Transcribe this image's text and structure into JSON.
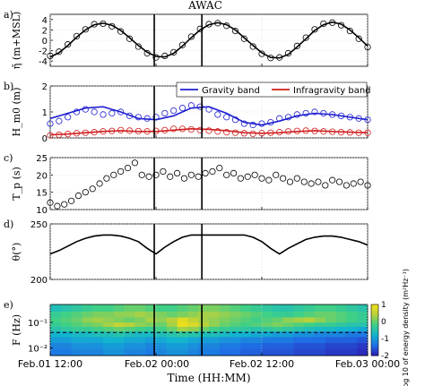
{
  "figure": {
    "title": "AWAC",
    "xlabel": "Time (HH:MM)",
    "xticks": [
      "Feb.01 12:00",
      "Feb.02 00:00",
      "Feb.02 12:00",
      "Feb.03 00:00"
    ]
  },
  "chart_data": [
    {
      "panel": "a)",
      "type": "line",
      "ylabel": "η̄ (m+MSL)",
      "ylim": [
        -5,
        5
      ],
      "yticks": [
        "4",
        "2",
        "0",
        "-2",
        "-4"
      ],
      "x_unit": "hours since Feb.01 12:00",
      "xlim": [
        0,
        36
      ],
      "vlines": [
        11.8,
        17.2
      ],
      "series": [
        {
          "kind": "line",
          "color": "#000000",
          "x": [
            0,
            1,
            2,
            3,
            4,
            5,
            6,
            7,
            8,
            9,
            10,
            11,
            12,
            13,
            14,
            15,
            16,
            17,
            18,
            19,
            20,
            21,
            22,
            23,
            24,
            25,
            26,
            27,
            28,
            29,
            30,
            31,
            32,
            33,
            34,
            35,
            36
          ],
          "y": [
            -3.2,
            -2.4,
            -1.0,
            0.6,
            2.0,
            3.0,
            3.3,
            2.9,
            1.9,
            0.5,
            -1.0,
            -2.3,
            -3.1,
            -3.2,
            -2.5,
            -1.1,
            0.5,
            2.0,
            3.0,
            3.4,
            3.0,
            2.0,
            0.5,
            -1.0,
            -2.4,
            -3.3,
            -3.4,
            -2.7,
            -1.3,
            0.3,
            1.9,
            3.0,
            3.5,
            3.1,
            2.0,
            0.5,
            -1.1
          ]
        },
        {
          "kind": "markers",
          "marker": "open-circle",
          "color": "#000000",
          "x": [
            0,
            1,
            2,
            3,
            4,
            5,
            6,
            7,
            8,
            9,
            10,
            11,
            12,
            13,
            14,
            15,
            16,
            17,
            18,
            19,
            20,
            21,
            22,
            23,
            24,
            25,
            26,
            27,
            28,
            29,
            30,
            31,
            32,
            33,
            34,
            35,
            36
          ],
          "y": [
            -3.0,
            -2.2,
            -0.8,
            0.8,
            2.1,
            3.1,
            3.2,
            2.7,
            1.7,
            0.3,
            -1.2,
            -2.5,
            -3.3,
            -3.0,
            -2.3,
            -0.9,
            0.7,
            2.2,
            3.1,
            3.3,
            2.8,
            1.8,
            0.3,
            -1.2,
            -2.6,
            -3.4,
            -3.3,
            -2.5,
            -1.1,
            0.5,
            2.1,
            3.2,
            3.4,
            2.9,
            1.8,
            0.3,
            -1.3
          ]
        }
      ]
    },
    {
      "panel": "b)",
      "type": "line",
      "ylabel": "H_m0 (m)",
      "ylim": [
        0,
        2
      ],
      "yticks": [
        "2",
        "1",
        "0"
      ],
      "x_unit": "hours since Feb.01 12:00",
      "xlim": [
        0,
        36
      ],
      "vlines": [
        11.8,
        17.2
      ],
      "legend": {
        "placement": "top-right",
        "entries": [
          "Gravity band",
          "Infragravity band"
        ]
      },
      "series": [
        {
          "name": "Gravity band",
          "kind": "line",
          "color": "#1f1fd0",
          "x": [
            0,
            2,
            4,
            6,
            8,
            10,
            12,
            14,
            16,
            18,
            20,
            22,
            24,
            26,
            28,
            30,
            32,
            34,
            36
          ],
          "y": [
            0.75,
            0.95,
            1.15,
            1.2,
            1.0,
            0.75,
            0.7,
            0.85,
            1.15,
            1.2,
            0.95,
            0.6,
            0.5,
            0.65,
            0.85,
            0.95,
            0.9,
            0.8,
            0.7
          ]
        },
        {
          "name": "Infragravity band",
          "kind": "line",
          "color": "#d01f1f",
          "x": [
            0,
            2,
            4,
            6,
            8,
            10,
            12,
            14,
            16,
            18,
            20,
            22,
            24,
            26,
            28,
            30,
            32,
            34,
            36
          ],
          "y": [
            0.12,
            0.15,
            0.2,
            0.25,
            0.28,
            0.25,
            0.25,
            0.3,
            0.35,
            0.33,
            0.28,
            0.2,
            0.18,
            0.2,
            0.25,
            0.28,
            0.25,
            0.22,
            0.2
          ]
        },
        {
          "kind": "markers",
          "marker": "open-circle",
          "color": "#1f1fd0",
          "x": [
            0,
            1,
            2,
            3,
            4,
            5,
            6,
            7,
            8,
            9,
            10,
            11,
            12,
            13,
            14,
            15,
            16,
            17,
            18,
            19,
            20,
            21,
            22,
            23,
            24,
            25,
            26,
            27,
            28,
            29,
            30,
            31,
            32,
            33,
            34,
            35,
            36
          ],
          "y": [
            0.55,
            0.65,
            0.8,
            1.0,
            1.1,
            1.0,
            0.9,
            0.95,
            1.0,
            0.85,
            0.8,
            0.75,
            0.8,
            0.95,
            1.05,
            1.15,
            1.25,
            1.2,
            1.1,
            0.9,
            0.8,
            0.7,
            0.55,
            0.5,
            0.55,
            0.6,
            0.75,
            0.8,
            0.9,
            0.95,
            1.0,
            0.95,
            0.9,
            0.85,
            0.8,
            0.75,
            0.7
          ]
        },
        {
          "kind": "markers",
          "marker": "open-circle",
          "color": "#d01f1f",
          "x": [
            0,
            1,
            2,
            3,
            4,
            5,
            6,
            7,
            8,
            9,
            10,
            11,
            12,
            13,
            14,
            15,
            16,
            17,
            18,
            19,
            20,
            21,
            22,
            23,
            24,
            25,
            26,
            27,
            28,
            29,
            30,
            31,
            32,
            33,
            34,
            35,
            36
          ],
          "y": [
            0.1,
            0.12,
            0.15,
            0.18,
            0.2,
            0.22,
            0.25,
            0.27,
            0.3,
            0.28,
            0.26,
            0.25,
            0.27,
            0.3,
            0.35,
            0.35,
            0.33,
            0.3,
            0.28,
            0.25,
            0.22,
            0.2,
            0.18,
            0.16,
            0.18,
            0.2,
            0.22,
            0.25,
            0.27,
            0.28,
            0.27,
            0.25,
            0.24,
            0.22,
            0.21,
            0.2,
            0.2
          ]
        }
      ]
    },
    {
      "panel": "c)",
      "type": "scatter",
      "ylabel": "T_p (s)",
      "ylim": [
        10,
        25
      ],
      "yticks": [
        "25",
        "20",
        "15",
        "10"
      ],
      "x_unit": "hours since Feb.01 12:00",
      "xlim": [
        0,
        36
      ],
      "vlines": [
        11.8,
        17.2
      ],
      "series": [
        {
          "kind": "markers",
          "marker": "open-circle",
          "color": "#000000",
          "x": [
            0,
            0.8,
            1.6,
            2.4,
            3.2,
            4.0,
            4.8,
            5.6,
            6.4,
            7.2,
            8.0,
            8.8,
            9.6,
            10.4,
            11.2,
            12.0,
            12.8,
            13.6,
            14.4,
            15.2,
            16.0,
            16.8,
            17.6,
            18.4,
            19.2,
            20.0,
            20.8,
            21.6,
            22.4,
            23.2,
            24.0,
            24.8,
            25.6,
            26.4,
            27.2,
            28.0,
            28.8,
            29.6,
            30.4,
            31.2,
            32.0,
            32.8,
            33.6,
            34.4,
            35.2,
            36.0
          ],
          "y": [
            12,
            11,
            11.5,
            12.5,
            14,
            15,
            16,
            17.5,
            19,
            20,
            21,
            22,
            23.5,
            20,
            19.5,
            20,
            21,
            19.5,
            20.5,
            19,
            20,
            19.5,
            20.5,
            21,
            22,
            20,
            20.5,
            19,
            19.5,
            20,
            19,
            18.5,
            20,
            19,
            18,
            19,
            18,
            17.5,
            18,
            17,
            18.5,
            18,
            17,
            17.5,
            18,
            17
          ]
        }
      ]
    },
    {
      "panel": "d)",
      "type": "line",
      "ylabel": "θ(°)",
      "ylim": [
        200,
        250
      ],
      "yticks": [
        "250",
        "200"
      ],
      "x_unit": "hours since Feb.01 12:00",
      "xlim": [
        0,
        36
      ],
      "vlines": [
        11.8,
        17.2
      ],
      "series": [
        {
          "kind": "line",
          "color": "#000000",
          "x": [
            0,
            1,
            2,
            3,
            4,
            5,
            6,
            7,
            8,
            9,
            10,
            11,
            12,
            13,
            14,
            15,
            16,
            17,
            18,
            19,
            20,
            21,
            22,
            23,
            24,
            25,
            26,
            27,
            28,
            29,
            30,
            31,
            32,
            33,
            34,
            35,
            36
          ],
          "y": [
            223,
            226,
            230,
            234,
            237,
            239,
            240,
            240,
            239,
            237,
            234,
            228,
            223,
            229,
            234,
            238,
            240,
            240,
            240,
            240,
            240,
            240,
            240,
            238,
            234,
            228,
            223,
            228,
            232,
            236,
            238,
            239,
            239,
            238,
            236,
            234,
            231
          ]
        }
      ]
    },
    {
      "panel": "e)",
      "type": "heatmap",
      "ylabel": "F (Hz)",
      "yticks": [
        "10⁻¹",
        "10⁻²"
      ],
      "y_scale": "log",
      "ylim": [
        0.005,
        0.5
      ],
      "x_unit": "hours since Feb.01 12:00",
      "xlim": [
        0,
        36
      ],
      "vlines": [
        11.8,
        17.2
      ],
      "colorbar": {
        "label": "Log 10 of energy density (m²Hz⁻¹)",
        "ticks": [
          "1",
          "0",
          "-1",
          "-2"
        ],
        "range": [
          -2,
          1
        ],
        "colors": [
          "#2c1fb4",
          "#1f6ee6",
          "#12b4cf",
          "#3fcf87",
          "#b8d13a",
          "#f5e016"
        ]
      },
      "horizontal_line_hz": 0.04,
      "rows": [
        {
          "freq_hz": 0.35,
          "values": [
            -0.6,
            -0.5,
            -0.4,
            -0.3,
            -0.2,
            -0.2,
            -0.1,
            0.0,
            0.0,
            -0.1,
            -0.2,
            -0.2,
            -0.1,
            0.0,
            0.1,
            0.1,
            0.0,
            -0.1,
            -0.2,
            -0.3,
            -0.4,
            -0.5,
            -0.5,
            -0.4,
            -0.3,
            -0.2,
            -0.2,
            -0.3,
            -0.4,
            -0.5
          ]
        },
        {
          "freq_hz": 0.2,
          "values": [
            -0.3,
            -0.2,
            -0.1,
            0.0,
            0.1,
            0.1,
            0.2,
            0.2,
            0.3,
            0.2,
            0.1,
            0.0,
            0.1,
            0.2,
            0.3,
            0.3,
            0.2,
            0.1,
            0.0,
            -0.1,
            -0.2,
            -0.3,
            -0.3,
            -0.2,
            -0.1,
            0.0,
            0.0,
            -0.1,
            -0.2,
            -0.3
          ]
        },
        {
          "freq_hz": 0.12,
          "values": [
            -0.2,
            -0.1,
            0.0,
            0.2,
            0.3,
            0.2,
            0.1,
            0.0,
            0.1,
            0.3,
            0.2,
            0.4,
            0.8,
            0.5,
            0.3,
            0.2,
            0.1,
            0.0,
            -0.1,
            -0.2,
            -0.1,
            0.0,
            0.2,
            0.3,
            0.4,
            0.2,
            0.0,
            -0.1,
            -0.2,
            -0.3
          ]
        },
        {
          "freq_hz": 0.08,
          "values": [
            -0.3,
            -0.2,
            -0.1,
            0.0,
            0.1,
            0.3,
            0.5,
            0.4,
            0.2,
            0.1,
            0.0,
            0.3,
            0.9,
            0.7,
            0.4,
            0.2,
            0.0,
            -0.1,
            -0.2,
            -0.1,
            0.0,
            0.1,
            0.0,
            -0.1,
            -0.2,
            -0.3,
            -0.3,
            -0.4,
            -0.5,
            -0.5
          ]
        },
        {
          "freq_hz": 0.055,
          "values": [
            -0.5,
            -0.4,
            -0.3,
            -0.3,
            -0.2,
            -0.1,
            0.0,
            -0.1,
            -0.2,
            -0.3,
            -0.2,
            0.0,
            0.3,
            0.2,
            0.0,
            -0.2,
            -0.3,
            -0.4,
            -0.4,
            -0.5,
            -0.4,
            -0.3,
            -0.4,
            -0.5,
            -0.6,
            -0.7,
            -0.7,
            -0.8,
            -0.8,
            -0.9
          ]
        },
        {
          "freq_hz": 0.035,
          "values": [
            -0.8,
            -0.8,
            -0.7,
            -0.7,
            -0.6,
            -0.6,
            -0.5,
            -0.6,
            -0.7,
            -0.7,
            -0.6,
            -0.5,
            -0.4,
            -0.5,
            -0.6,
            -0.6,
            -0.7,
            -0.8,
            -0.8,
            -0.9,
            -0.9,
            -1.0,
            -1.0,
            -1.1,
            -1.1,
            -1.2,
            -1.2,
            -1.2,
            -1.3,
            -1.3
          ]
        },
        {
          "freq_hz": 0.02,
          "values": [
            -1.0,
            -1.0,
            -0.9,
            -0.9,
            -0.9,
            -0.8,
            -0.8,
            -0.9,
            -0.9,
            -1.0,
            -0.9,
            -0.8,
            -0.8,
            -0.9,
            -1.0,
            -1.0,
            -1.1,
            -1.1,
            -1.2,
            -1.2,
            -1.3,
            -1.3,
            -1.3,
            -1.4,
            -1.4,
            -1.4,
            -1.5,
            -1.5,
            -1.5,
            -1.6
          ]
        },
        {
          "freq_hz": 0.012,
          "values": [
            -1.2,
            -1.2,
            -1.1,
            -1.1,
            -1.1,
            -1.0,
            -1.0,
            -1.1,
            -1.1,
            -1.2,
            -1.1,
            -1.0,
            -1.0,
            -1.1,
            -1.2,
            -1.2,
            -1.3,
            -1.3,
            -1.4,
            -1.4,
            -1.5,
            -1.5,
            -1.5,
            -1.6,
            -1.6,
            -1.6,
            -1.7,
            -1.7,
            -1.7,
            -1.8
          ]
        },
        {
          "freq_hz": 0.007,
          "values": [
            -1.3,
            -1.3,
            -1.2,
            -1.2,
            -1.2,
            -1.1,
            -1.1,
            -1.2,
            -1.2,
            -1.3,
            -1.2,
            -1.1,
            -1.1,
            -1.2,
            -1.3,
            -1.3,
            -1.4,
            -1.4,
            -1.5,
            -1.5,
            -1.6,
            -1.6,
            -1.6,
            -1.7,
            -1.7,
            -1.7,
            -1.8,
            -1.8,
            -1.8,
            -1.9
          ]
        }
      ]
    }
  ]
}
